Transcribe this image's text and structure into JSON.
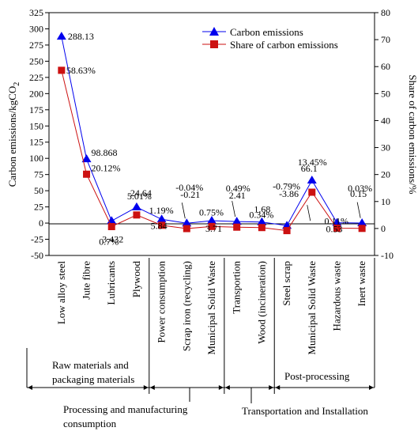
{
  "chart_data": {
    "type": "line",
    "categories": [
      "Low alloy steel",
      "Jute fibre",
      "Lubricants",
      "Plywood",
      "Power consumption",
      "Scrap iron (recycling)",
      "Municipal Solid Waste",
      "Transportion",
      "Wood (incineration)",
      "Steel scrap",
      "Municipal Solid Waste",
      "Hazardous waste",
      "Inert waste"
    ],
    "series": [
      {
        "name": "Carbon emissions",
        "axis": "left",
        "color": "#0000ee",
        "marker": "triangle",
        "values": [
          288.13,
          98.868,
          3.432,
          24.64,
          5.84,
          -0.21,
          3.71,
          2.41,
          1.68,
          -3.86,
          66.1,
          0.53,
          0.15
        ],
        "labels": [
          "288.13",
          "98.868",
          "3.432",
          "24.64",
          "5.84",
          "-0.21",
          "3.71",
          "2.41",
          "1.68",
          "-3.86",
          "66.1",
          "0.53",
          "0.15"
        ]
      },
      {
        "name": "Share of carbon emissions",
        "axis": "right",
        "color": "#cc1111",
        "marker": "square",
        "values": [
          58.63,
          20.12,
          0.7,
          5.01,
          1.19,
          -0.04,
          0.75,
          0.49,
          0.34,
          -0.79,
          13.45,
          0.11,
          0.03
        ],
        "labels": [
          "58.63%",
          "20.12%",
          "0.7%",
          "5.01%",
          "1.19%",
          "-0.04%",
          "0.75%",
          "0.49%",
          "0.34%",
          "-0.79%",
          "13.45%",
          "0.11%",
          "0.03%"
        ]
      }
    ],
    "y_left": {
      "label": "Carbon emissions/kgCO",
      "label_subscript": "2",
      "range": [
        -50,
        325
      ],
      "ticks": [
        "-50",
        "-25",
        "0",
        "25",
        "50",
        "75",
        "100",
        "125",
        "150",
        "175",
        "200",
        "225",
        "250",
        "275",
        "300",
        "325"
      ]
    },
    "y_right": {
      "label": "Share of carbon emissions/%",
      "range": [
        -10,
        80
      ],
      "ticks": [
        "-10",
        "0",
        "10",
        "20",
        "30",
        "40",
        "50",
        "60",
        "70",
        "80"
      ]
    },
    "groups": [
      {
        "name_lines": [
          "Raw materials and",
          "packaging materials"
        ],
        "start": 0,
        "end": 3
      },
      {
        "name_lines": [
          "Processing and manufacturing",
          "consumption"
        ],
        "start": 4,
        "end": 6
      },
      {
        "name_lines": [
          "Transportation and Installation"
        ],
        "start": 7,
        "end": 8
      },
      {
        "name_lines": [
          "Post-processing"
        ],
        "start": 9,
        "end": 12
      }
    ],
    "legend_position": "top-right",
    "grid": false
  }
}
